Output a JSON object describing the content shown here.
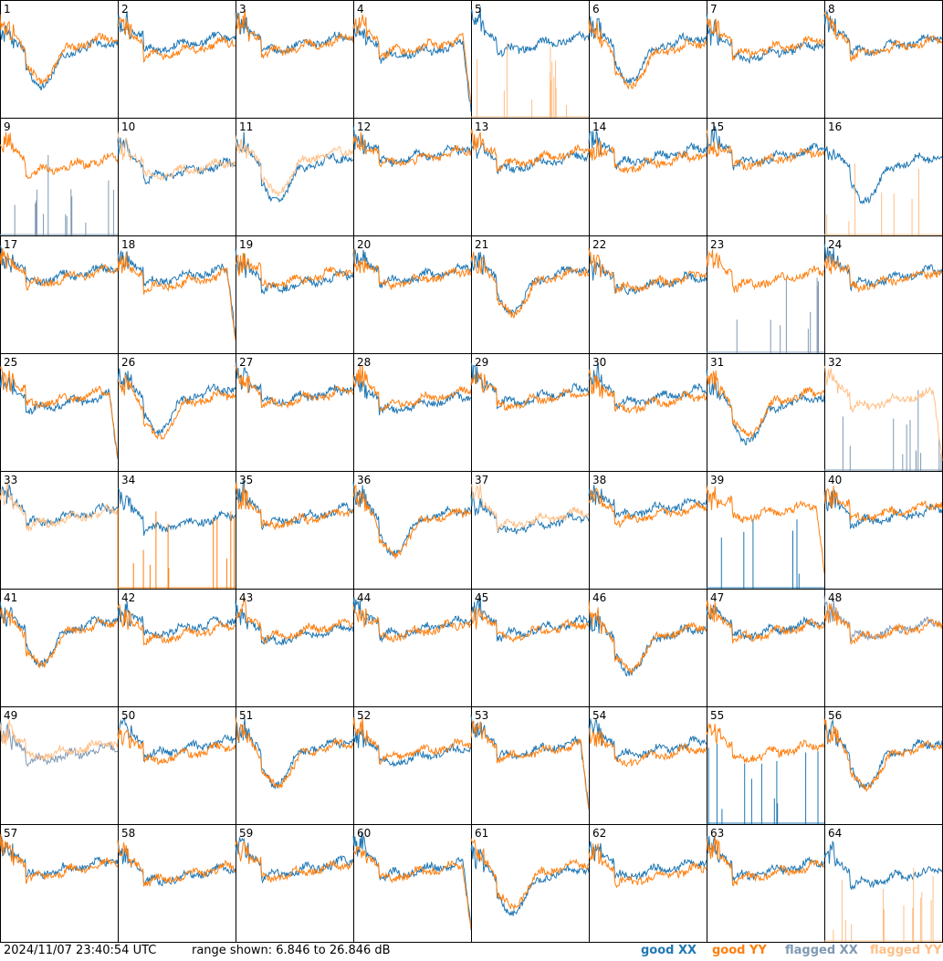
{
  "chart_data": {
    "type": "line",
    "panel_count": 64,
    "panel_labels": [
      "1",
      "2",
      "3",
      "4",
      "5",
      "6",
      "7",
      "8",
      "9",
      "10",
      "11",
      "12",
      "13",
      "14",
      "15",
      "16",
      "17",
      "18",
      "19",
      "20",
      "21",
      "22",
      "23",
      "24",
      "25",
      "26",
      "27",
      "28",
      "29",
      "30",
      "31",
      "32",
      "33",
      "34",
      "35",
      "36",
      "37",
      "38",
      "39",
      "40",
      "41",
      "42",
      "43",
      "44",
      "45",
      "46",
      "47",
      "48",
      "49",
      "50",
      "51",
      "52",
      "53",
      "54",
      "55",
      "56",
      "57",
      "58",
      "59",
      "60",
      "61",
      "62",
      "63",
      "64"
    ],
    "ylim_db": [
      6.846,
      26.846
    ],
    "series_styles": [
      {
        "key": "good_xx",
        "color": "#1f77b4"
      },
      {
        "key": "good_yy",
        "color": "#ff7f0e"
      },
      {
        "key": "flagged_xx",
        "color": "#7f99b4"
      },
      {
        "key": "flagged_yy",
        "color": "#ffbf87"
      }
    ],
    "panel_states": {
      "5": {
        "xx": "good",
        "yy": "flagged_spikes"
      },
      "9": {
        "xx": "flagged_spikes",
        "yy": "good"
      },
      "10": {
        "xx": "good",
        "yy": "flagged"
      },
      "11": {
        "xx": "good",
        "yy": "flagged"
      },
      "16": {
        "xx": "good",
        "yy": "flagged_spikes"
      },
      "23": {
        "xx": "flagged_spikes",
        "yy": "good"
      },
      "32": {
        "xx": "flagged_spikes",
        "yy": "flagged"
      },
      "33": {
        "xx": "good",
        "yy": "flagged"
      },
      "34": {
        "xx": "good",
        "yy": "good_spikes"
      },
      "37": {
        "xx": "good",
        "yy": "flagged"
      },
      "39": {
        "xx": "good_spikes",
        "yy": "good"
      },
      "48": {
        "xx": "flagged",
        "yy": "good"
      },
      "49": {
        "xx": "flagged",
        "yy": "flagged"
      },
      "55": {
        "xx": "good_spikes",
        "yy": "good"
      },
      "64": {
        "xx": "good",
        "yy": "flagged_spikes"
      }
    }
  },
  "footer": {
    "timestamp": "2024/11/07 23:40:54 UTC",
    "range": "range shown: 6.846 to 26.846 dB"
  },
  "legend": {
    "good_xx": "good XX",
    "good_yy": "good YY",
    "flagged_xx": "flagged XX",
    "flagged_yy": "flagged YY"
  }
}
